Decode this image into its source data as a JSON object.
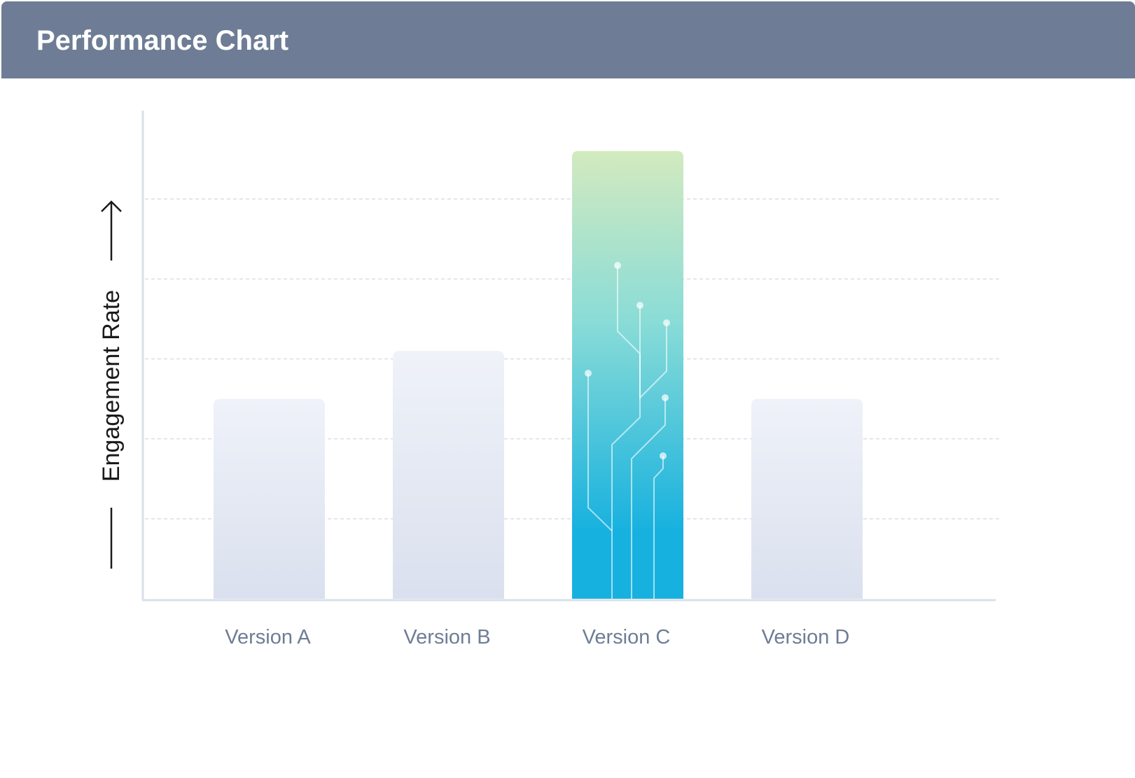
{
  "header": {
    "title": "Performance Chart",
    "background": "#6e7d95"
  },
  "colors": {
    "axis": "#d8e0ea",
    "grid": "#dcdcea",
    "bar_top": "#eff2f9",
    "bar_bottom": "#dae0ee",
    "highlight_top": "#d3eabf",
    "highlight_mid": "#8adcd7",
    "highlight_bottom": "#17b1df",
    "tick_label": "#6e7d95",
    "axis_label": "#1a1a1a"
  },
  "chart_data": {
    "type": "bar",
    "title": "",
    "xlabel": "",
    "ylabel": "Engagement Rate",
    "categories": [
      "Version A",
      "Version B",
      "Version C",
      "Version D"
    ],
    "values": [
      2.5,
      3.1,
      5.6,
      2.5
    ],
    "highlight": "Version C",
    "highlight_decoration": "circuit-pattern-icon",
    "ylim": [
      0,
      6
    ],
    "gridlines_at": [
      1,
      2,
      3,
      4,
      5
    ],
    "y_tick_labels": false,
    "grid": true,
    "legend": "none"
  }
}
